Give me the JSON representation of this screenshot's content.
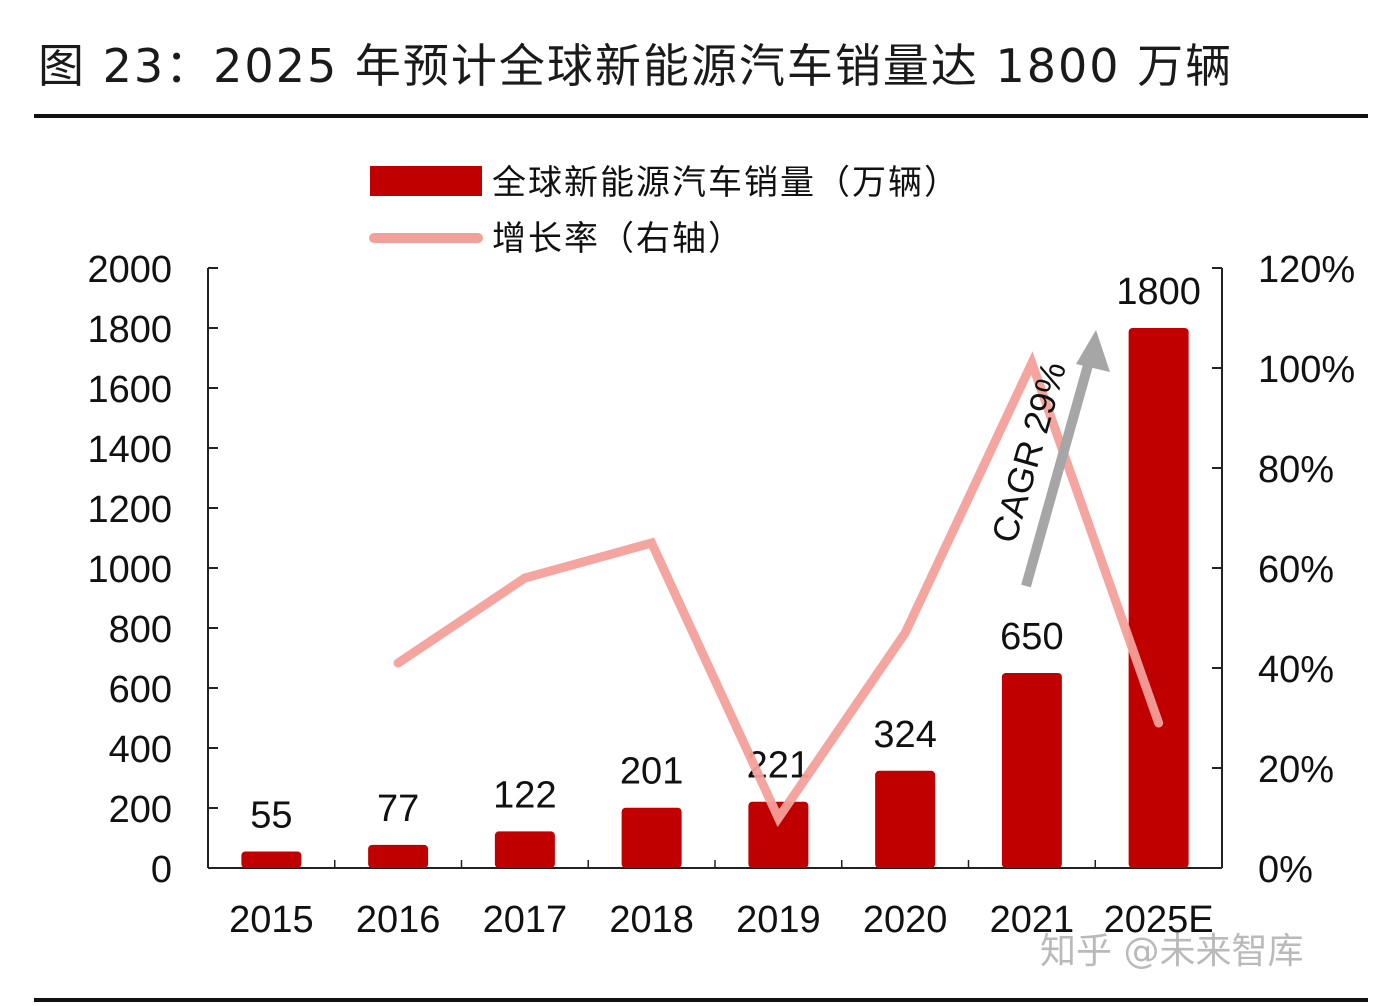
{
  "title": "图 23：2025 年预计全球新能源汽车销量达 1800 万辆",
  "watermark": "知乎 @未来智库",
  "chart_data": {
    "type": "bar",
    "categories": [
      "2015",
      "2016",
      "2017",
      "2018",
      "2019",
      "2020",
      "2021",
      "2025E"
    ],
    "series": [
      {
        "name": "全球新能源汽车销量（万辆）",
        "type": "bar",
        "axis": "left",
        "color": "#C00000",
        "values": [
          55,
          77,
          122,
          201,
          221,
          324,
          650,
          1800
        ],
        "labels": [
          "55",
          "77",
          "122",
          "201",
          "221",
          "324",
          "650",
          "1800"
        ]
      },
      {
        "name": "增长率（右轴）",
        "type": "line",
        "axis": "right",
        "color": "#F4A09A",
        "values": [
          null,
          41,
          58,
          65,
          10,
          47,
          101,
          29
        ]
      }
    ],
    "y_left": {
      "min": 0,
      "max": 2000,
      "step": 200,
      "ticks": [
        "0",
        "200",
        "400",
        "600",
        "800",
        "1000",
        "1200",
        "1400",
        "1600",
        "1800",
        "2000"
      ]
    },
    "y_right": {
      "min": 0,
      "max": 120,
      "step": 20,
      "ticks": [
        "0%",
        "20%",
        "40%",
        "60%",
        "80%",
        "100%",
        "120%"
      ]
    },
    "annotation": {
      "text": "CAGR 29%",
      "arrow_color": "#A6A6A6"
    },
    "legend_position": "top-left",
    "grid": false
  }
}
